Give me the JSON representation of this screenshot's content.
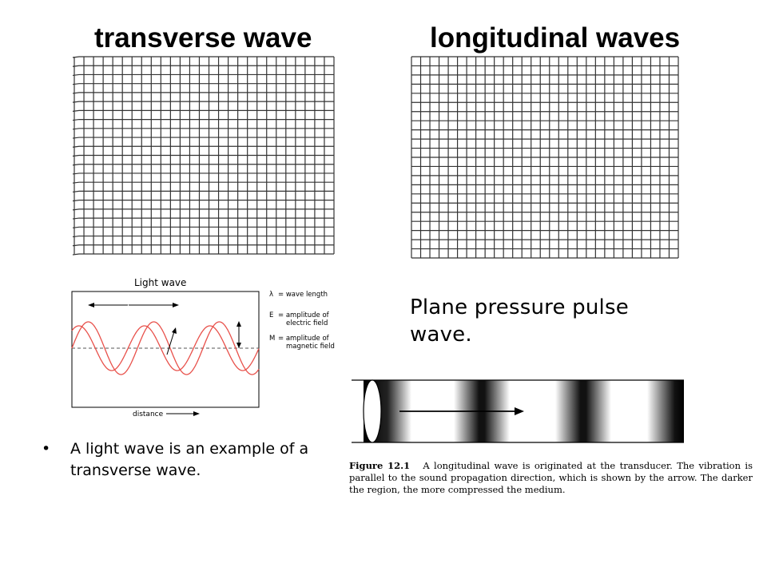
{
  "titles": {
    "left": "transverse wave",
    "right": "longitudinal waves"
  },
  "light_wave_figure": {
    "title": "Light wave",
    "lambda_marker": "λ",
    "legend": [
      {
        "symbol": "λ",
        "text": "= wave length"
      },
      {
        "symbol": "E",
        "text": "= amplitude of electric field"
      },
      {
        "symbol": "M",
        "text": "= amplitude of magnetic field"
      }
    ],
    "x_label": "distance"
  },
  "pulse_caption": "Plane pressure pulse wave.",
  "figure_caption": {
    "label": "Figure 12.1",
    "text": "A longitudinal wave is originated at the transducer. The vibration is parallel to the sound propagation direction, which is shown by the arrow. The darker the region, the more compressed the medium."
  },
  "bullet": {
    "marker": "•",
    "text": "A light wave is an example of a transverse wave."
  },
  "colors": {
    "wave": "#e8504a",
    "grid": "#333333"
  }
}
